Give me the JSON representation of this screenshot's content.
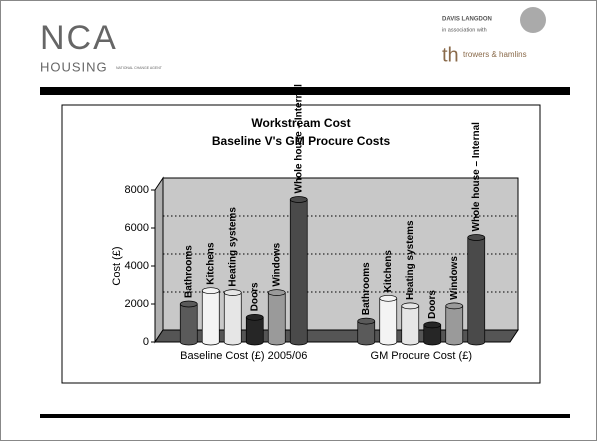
{
  "header": {
    "logo_main": "NCA",
    "logo_sub": "HOUSING",
    "logo_tag": "NATIONAL CHANGE AGENT",
    "partner_1": "DAVIS LANGDON",
    "partner_note": "in association with",
    "partner_2_mark": "th",
    "partner_2": "trowers & hamlins"
  },
  "chart_data": {
    "type": "bar3d",
    "title": "Workstream Cost",
    "subtitle": "Baseline V's GM Procure Costs",
    "y_label": "Cost (£)",
    "categories": [
      "Baseline Cost (£) 2005/06",
      "GM Procure Cost (£)"
    ],
    "series": [
      {
        "name": "Bathrooms",
        "color": "#5a5a5a",
        "values": [
          2000,
          1100
        ]
      },
      {
        "name": "Kitchens",
        "color": "#f4f4f4",
        "values": [
          2700,
          2300
        ]
      },
      {
        "name": "Heating systems",
        "color": "#e6e6e6",
        "values": [
          2600,
          1900
        ]
      },
      {
        "name": "Doors",
        "color": "#262626",
        "values": [
          1300,
          900
        ]
      },
      {
        "name": "Windows",
        "color": "#9a9a9a",
        "values": [
          2600,
          1900
        ]
      },
      {
        "name": "Whole house – Internal",
        "color": "#4a4a4a",
        "values": [
          7500,
          5500
        ]
      }
    ],
    "ylim": [
      0,
      8000
    ],
    "yticks": [
      0,
      2000,
      4000,
      6000,
      8000
    ],
    "grid": true
  }
}
